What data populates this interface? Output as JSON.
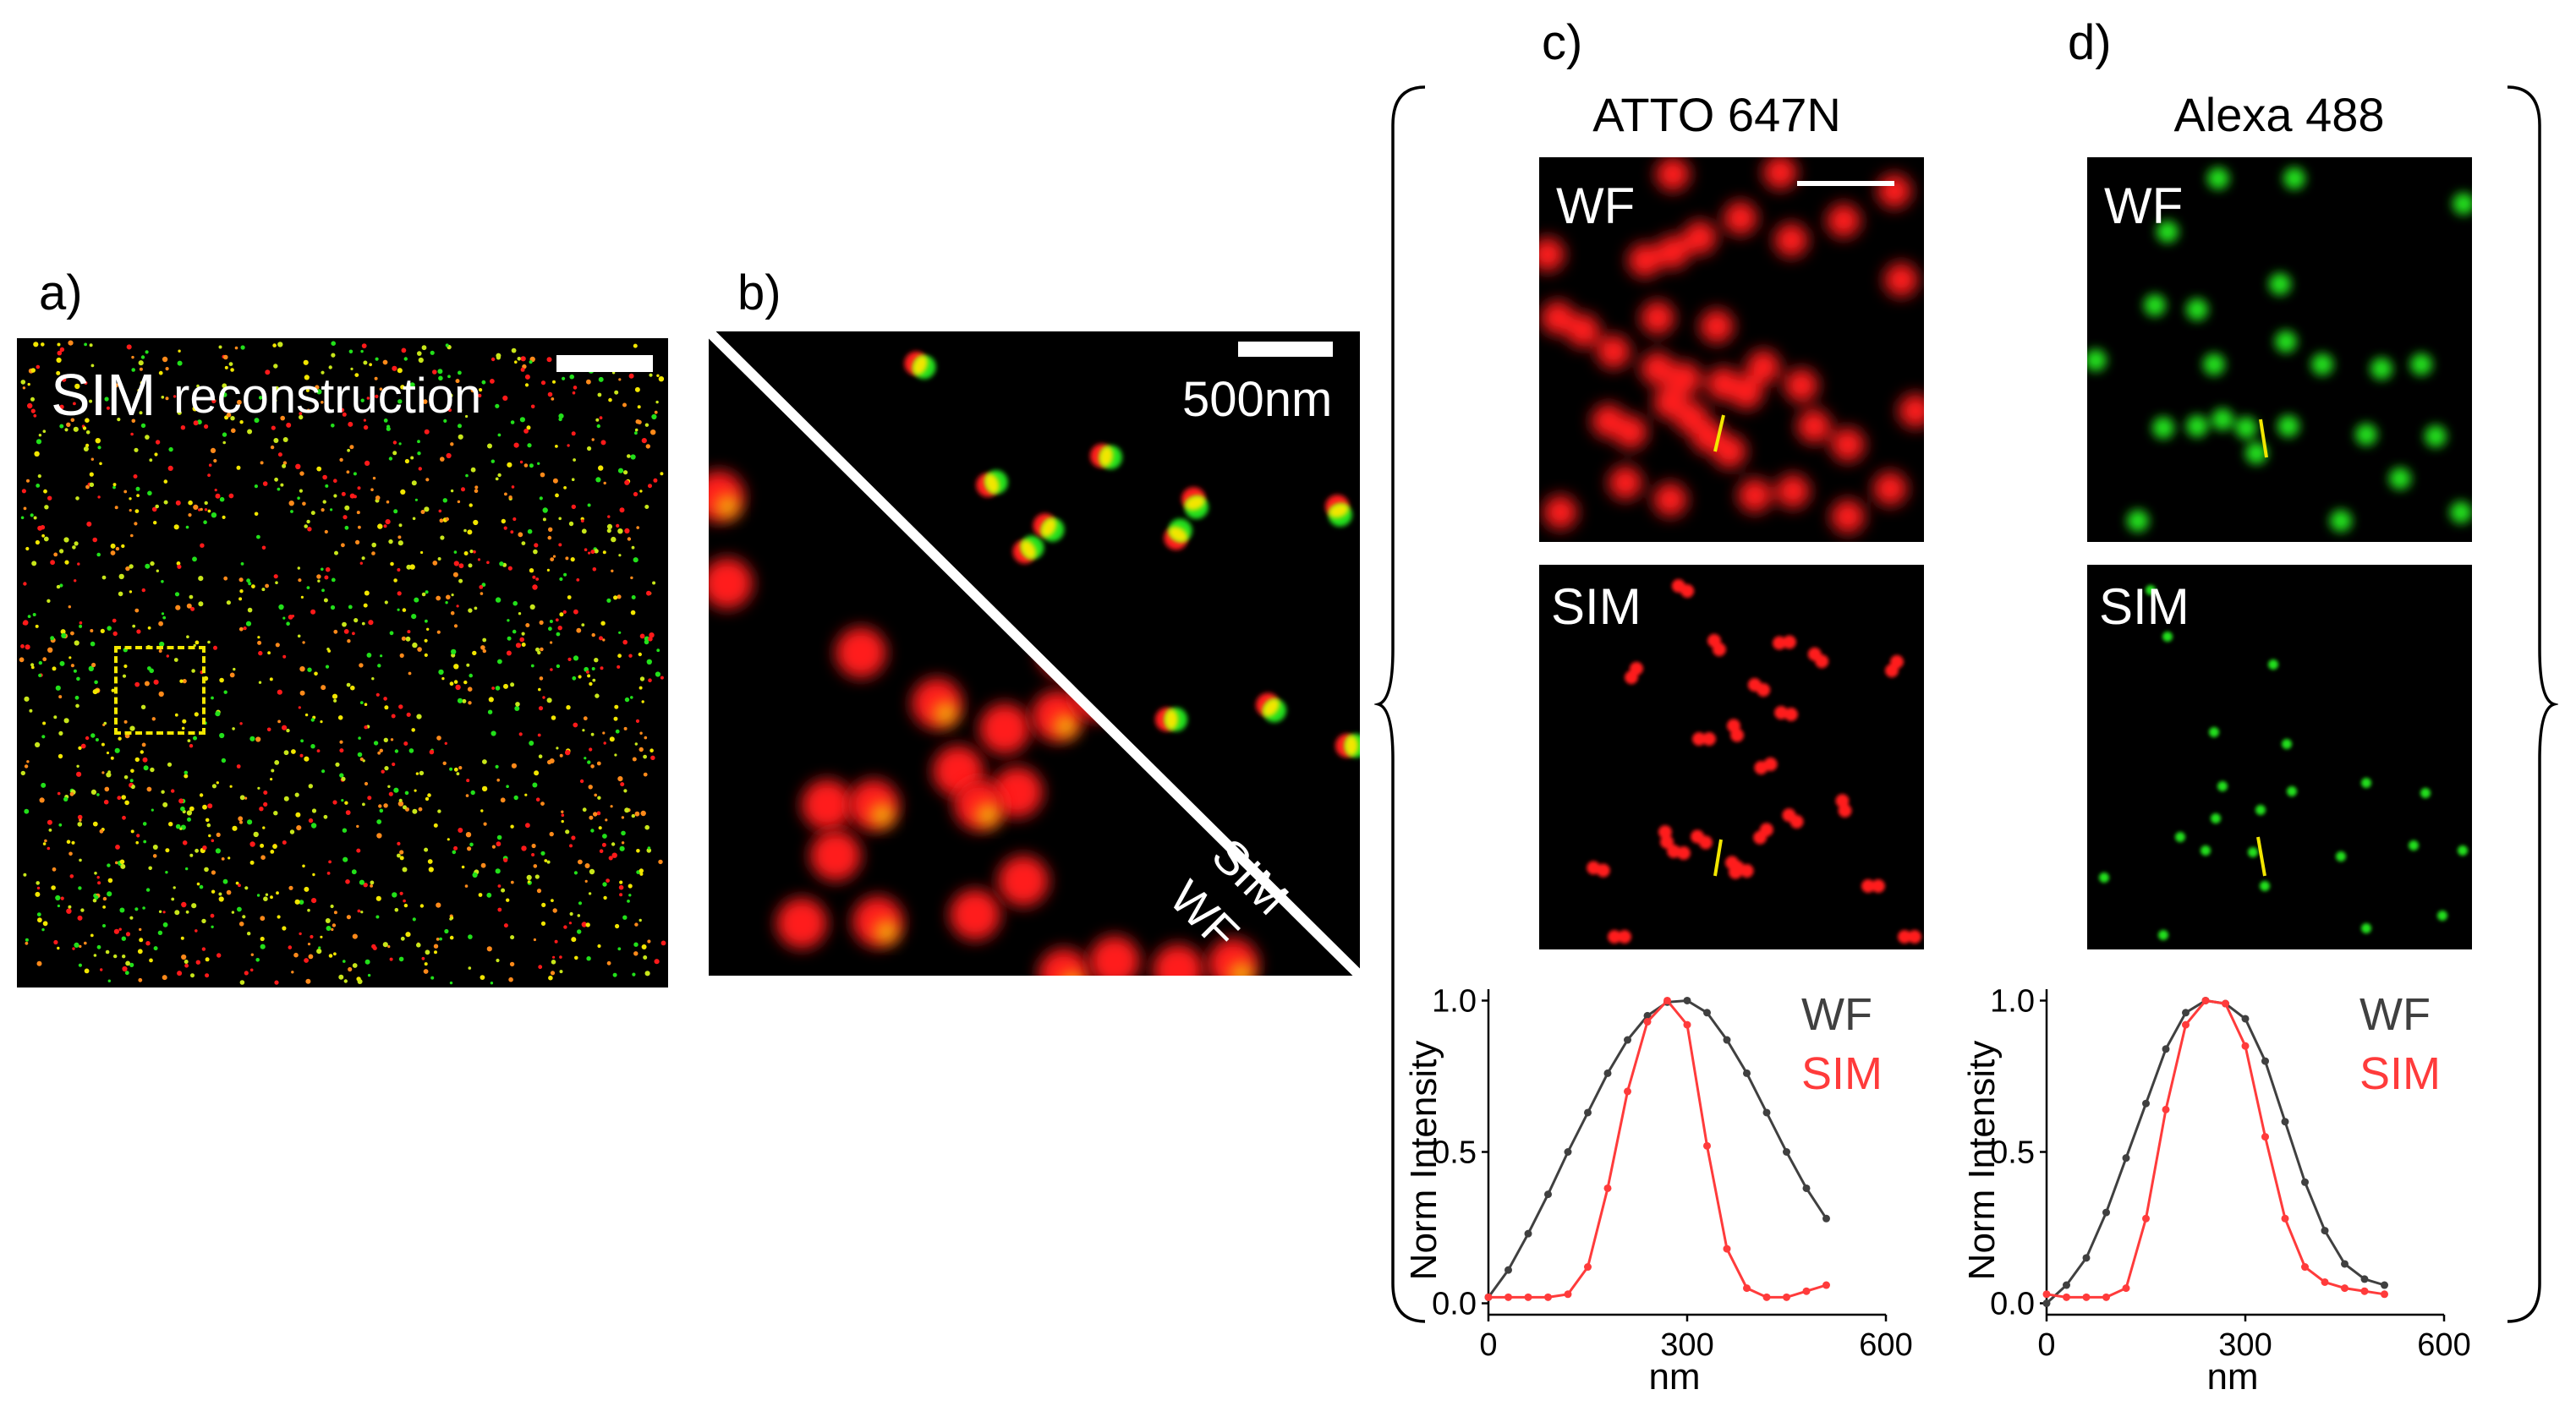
{
  "figure": {
    "panels": {
      "a": {
        "letter": "a)",
        "label_big": "SIM",
        "label_small": "reconstruction"
      },
      "b": {
        "letter": "b)",
        "scalebar_label": "500nm",
        "diag_sim": "SIM",
        "diag_wf": "WF"
      },
      "c": {
        "letter": "c)",
        "dye": "ATTO 647N",
        "wf_label": "WF",
        "sim_label": "SIM"
      },
      "d": {
        "letter": "d)",
        "dye": "Alexa 488",
        "wf_label": "WF",
        "sim_label": "SIM"
      }
    },
    "colors": {
      "red": "#ff1a1a",
      "green": "#22e01a",
      "yellow": "#f2e600",
      "wf_line": "#404040",
      "sim_line": "#ff3b3b"
    }
  },
  "chart_data": [
    {
      "type": "line",
      "panel": "c",
      "ylabel": "Norm Intensity",
      "xlabel": "nm",
      "xlim": [
        0,
        600
      ],
      "ylim": [
        0,
        1.0
      ],
      "xticks": [
        "0",
        "300",
        "600"
      ],
      "yticks": [
        "0.0",
        "0.5",
        "1.0"
      ],
      "legend": [
        "WF",
        "SIM"
      ],
      "series": [
        {
          "name": "WF",
          "x": [
            0,
            30,
            60,
            90,
            120,
            150,
            180,
            210,
            240,
            270,
            300,
            330,
            360,
            390,
            420,
            450,
            480,
            510
          ],
          "y": [
            0.02,
            0.11,
            0.23,
            0.36,
            0.5,
            0.63,
            0.76,
            0.87,
            0.95,
            0.995,
            1.0,
            0.96,
            0.87,
            0.76,
            0.63,
            0.5,
            0.38,
            0.28
          ]
        },
        {
          "name": "SIM",
          "x": [
            0,
            30,
            60,
            90,
            120,
            150,
            180,
            210,
            240,
            270,
            300,
            330,
            360,
            390,
            420,
            450,
            480,
            510
          ],
          "y": [
            0.02,
            0.02,
            0.02,
            0.02,
            0.03,
            0.12,
            0.38,
            0.7,
            0.93,
            1.0,
            0.92,
            0.52,
            0.18,
            0.05,
            0.02,
            0.02,
            0.04,
            0.06
          ]
        }
      ]
    },
    {
      "type": "line",
      "panel": "d",
      "ylabel": "Norm Intensity",
      "xlabel": "nm",
      "xlim": [
        0,
        600
      ],
      "ylim": [
        0,
        1.0
      ],
      "xticks": [
        "0",
        "300",
        "600"
      ],
      "yticks": [
        "0.0",
        "0.5",
        "1.0"
      ],
      "legend": [
        "WF",
        "SIM"
      ],
      "series": [
        {
          "name": "WF",
          "x": [
            0,
            30,
            60,
            90,
            120,
            150,
            180,
            210,
            240,
            270,
            300,
            330,
            360,
            390,
            420,
            450,
            480,
            510
          ],
          "y": [
            0.0,
            0.06,
            0.15,
            0.3,
            0.48,
            0.66,
            0.84,
            0.96,
            1.0,
            0.99,
            0.94,
            0.8,
            0.6,
            0.4,
            0.24,
            0.13,
            0.08,
            0.06
          ]
        },
        {
          "name": "SIM",
          "x": [
            0,
            30,
            60,
            90,
            120,
            150,
            180,
            210,
            240,
            270,
            300,
            330,
            360,
            390,
            420,
            450,
            480,
            510
          ],
          "y": [
            0.03,
            0.02,
            0.02,
            0.02,
            0.05,
            0.28,
            0.64,
            0.92,
            1.0,
            0.99,
            0.85,
            0.55,
            0.28,
            0.12,
            0.07,
            0.05,
            0.04,
            0.03
          ]
        }
      ]
    }
  ]
}
